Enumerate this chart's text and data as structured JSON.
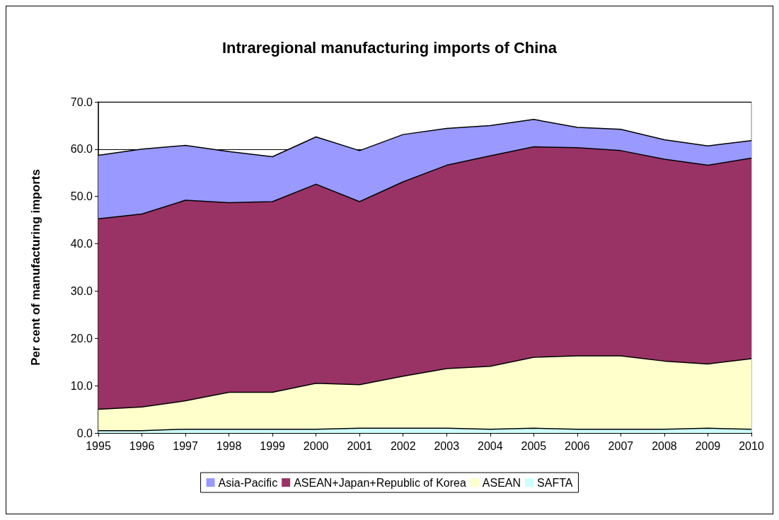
{
  "chart_data": {
    "type": "area",
    "title": "Intraregional manufacturing imports of China",
    "ylabel": "Per cent of manufacturing imports",
    "categories": [
      "1995",
      "1996",
      "1997",
      "1998",
      "1999",
      "2000",
      "2001",
      "2002",
      "2003",
      "2004",
      "2005",
      "2006",
      "2007",
      "2008",
      "2009",
      "2010"
    ],
    "series": [
      {
        "name": "Asia-Pacific",
        "color": "#9999ff",
        "values": [
          58.7,
          60.0,
          60.8,
          59.5,
          58.4,
          62.6,
          59.7,
          63.1,
          64.4,
          65.0,
          66.3,
          64.6,
          64.2,
          62.0,
          60.7,
          61.8
        ]
      },
      {
        "name": "ASEAN+Japan+Republic of Korea",
        "color": "#993366",
        "values": [
          45.3,
          46.3,
          49.2,
          48.7,
          48.9,
          52.6,
          48.9,
          53.1,
          56.6,
          58.6,
          60.5,
          60.3,
          59.7,
          57.9,
          56.6,
          58.1
        ]
      },
      {
        "name": "ASEAN",
        "color": "#ffffcc",
        "values": [
          5.0,
          5.5,
          6.8,
          8.6,
          8.6,
          10.5,
          10.2,
          12.0,
          13.6,
          14.1,
          16.0,
          16.3,
          16.3,
          15.2,
          14.6,
          15.7
        ]
      },
      {
        "name": "SAFTA",
        "color": "#ccffff",
        "values": [
          0.5,
          0.5,
          0.8,
          0.8,
          0.8,
          0.8,
          1.0,
          1.0,
          1.0,
          0.8,
          1.0,
          0.8,
          0.8,
          0.8,
          1.0,
          0.8
        ]
      }
    ],
    "ylim": [
      0,
      70
    ],
    "yticks": [
      {
        "value": 0,
        "label": "0.0"
      },
      {
        "value": 10,
        "label": "10.0"
      },
      {
        "value": 20,
        "label": "20.0"
      },
      {
        "value": 30,
        "label": "30.0"
      },
      {
        "value": 40,
        "label": "40.0"
      },
      {
        "value": 50,
        "label": "50.0"
      },
      {
        "value": 60,
        "label": "60.0"
      },
      {
        "value": 70,
        "label": "70.0"
      }
    ],
    "grid": "y",
    "legend": "bottom"
  }
}
